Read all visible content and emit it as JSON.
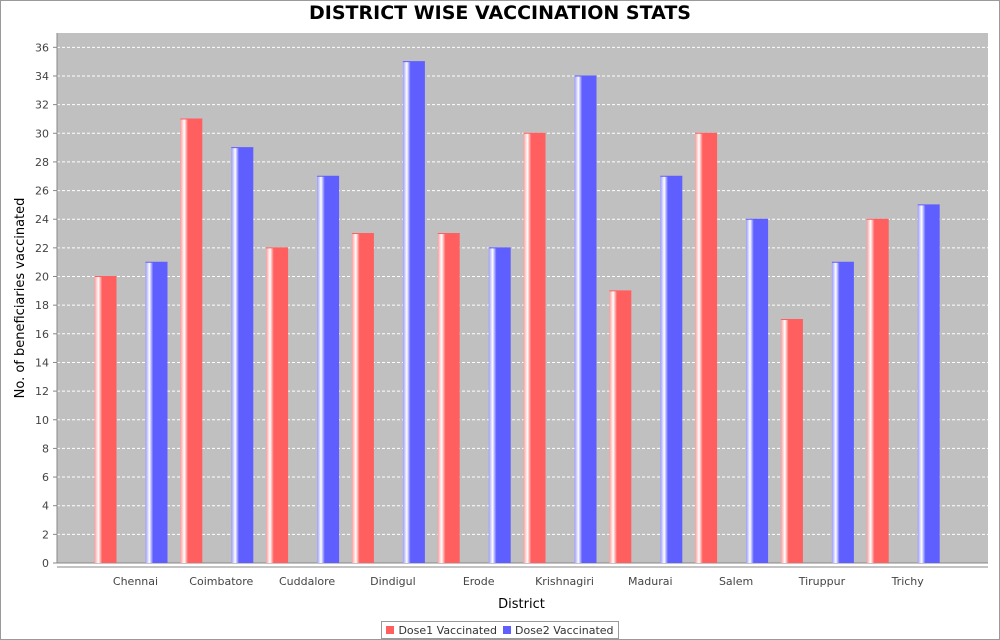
{
  "chart_data": {
    "type": "bar",
    "title": "DISTRICT WISE VACCINATION STATS",
    "xlabel": "District",
    "ylabel": "No. of beneficiaries vaccinated",
    "ylim": [
      0,
      37
    ],
    "yticks": [
      0,
      2,
      4,
      6,
      8,
      10,
      12,
      14,
      16,
      18,
      20,
      22,
      24,
      26,
      28,
      30,
      32,
      34,
      36
    ],
    "grid": true,
    "legend_position": "bottom",
    "categories": [
      "Chennai",
      "Coimbatore",
      "Cuddalore",
      "Dindigul",
      "Erode",
      "Krishnagiri",
      "Madurai",
      "Salem",
      "Tiruppur",
      "Trichy"
    ],
    "series": [
      {
        "name": "Dose1 Vaccinated",
        "color": "#ff5f5f",
        "values": [
          20,
          31,
          22,
          23,
          23,
          30,
          19,
          30,
          17,
          24
        ]
      },
      {
        "name": "Dose2 Vaccinated",
        "color": "#5f5fff",
        "values": [
          21,
          29,
          27,
          35,
          22,
          34,
          27,
          24,
          21,
          25
        ]
      }
    ],
    "plot_background": "#c0c0c0"
  }
}
